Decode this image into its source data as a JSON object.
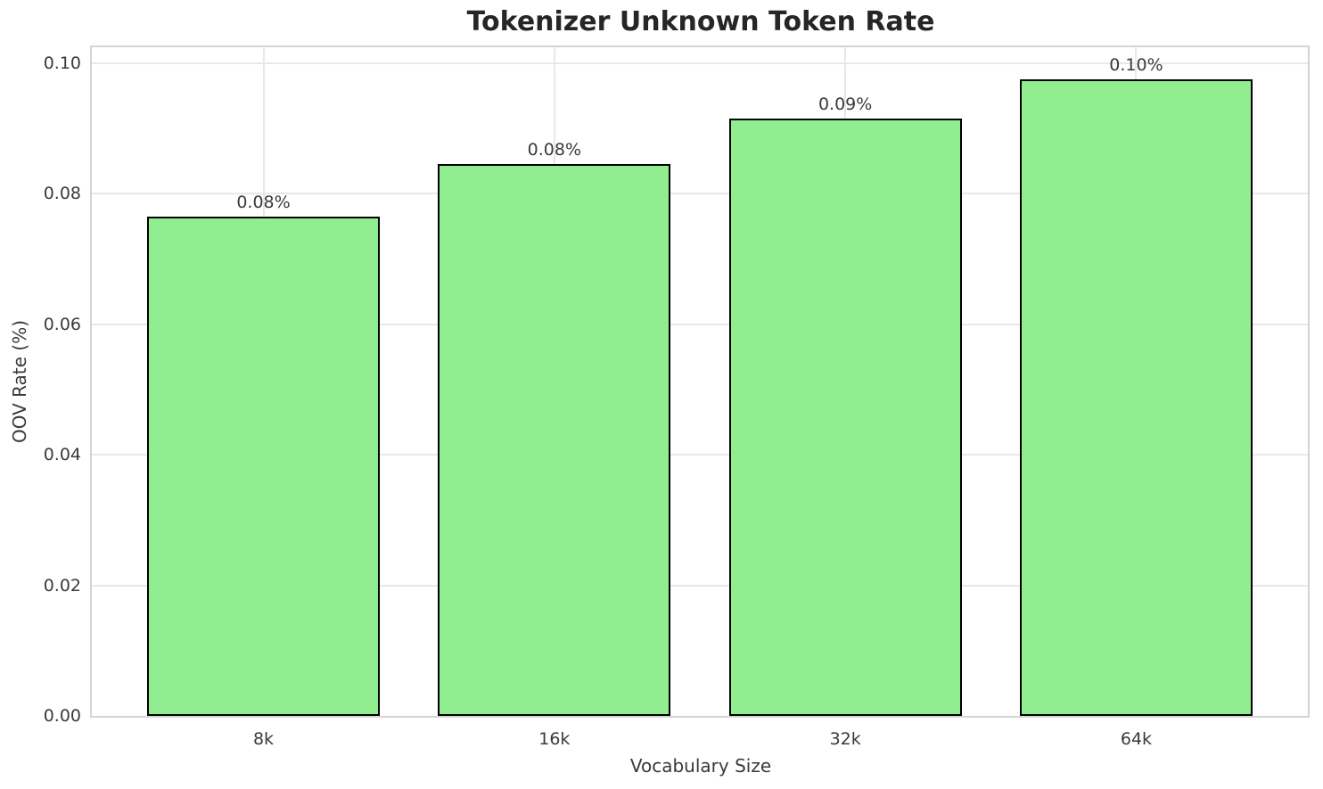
{
  "chart_data": {
    "type": "bar",
    "title": "Tokenizer Unknown Token Rate",
    "xlabel": "Vocabulary Size",
    "ylabel": "OOV Rate (%)",
    "categories": [
      "8k",
      "16k",
      "32k",
      "64k"
    ],
    "values": [
      0.0765,
      0.0845,
      0.0915,
      0.0975
    ],
    "bar_labels": [
      "0.08%",
      "0.08%",
      "0.09%",
      "0.10%"
    ],
    "ytick_labels": [
      "0.00",
      "0.02",
      "0.04",
      "0.06",
      "0.08",
      "0.10"
    ],
    "yticks": [
      0.0,
      0.02,
      0.04,
      0.06,
      0.08,
      0.1
    ],
    "ylim": [
      0,
      0.1024
    ],
    "xlim": [
      -0.59,
      3.59
    ],
    "bar_width": 0.8,
    "grid": true,
    "legend": "none",
    "bar_color": "#90EE90",
    "bar_edge_color": "#000000",
    "grid_color": "#e8e8e8",
    "spine_color": "#d4d4d4",
    "text_color": "#3a3a3a",
    "title_color": "#262626"
  }
}
